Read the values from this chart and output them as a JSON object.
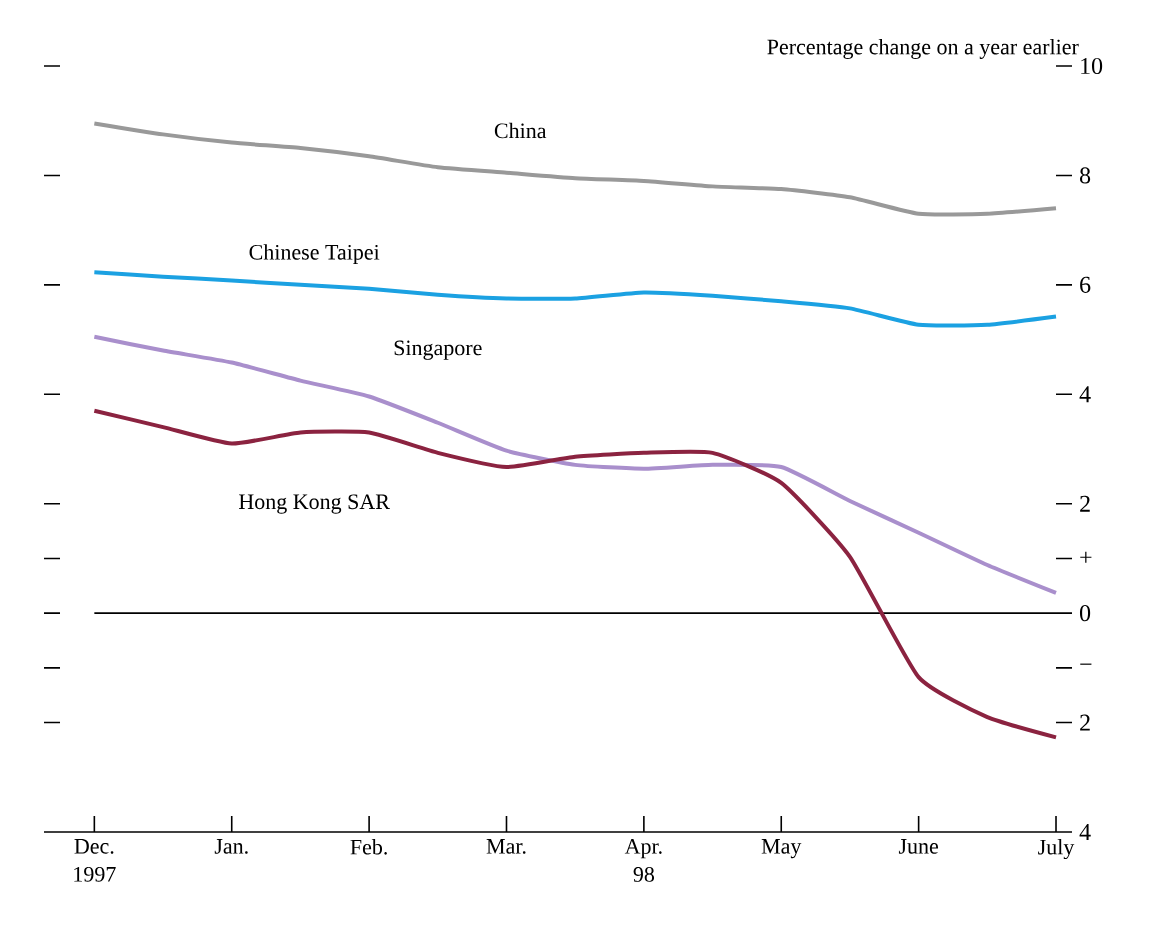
{
  "chart_data": {
    "type": "line",
    "ylabel": "Percentage change on a year earlier",
    "categories": [
      "Dec. 1997",
      null,
      "Jan.",
      null,
      "Feb.",
      null,
      "Mar.",
      null,
      "Apr. 98",
      null,
      "May",
      null,
      "June",
      null,
      "July"
    ],
    "series": [
      {
        "name": "China",
        "color": "#999999",
        "values": [
          8.95,
          8.75,
          8.6,
          8.5,
          8.35,
          8.15,
          8.05,
          7.95,
          7.9,
          7.8,
          7.75,
          7.6,
          7.3,
          7.3,
          7.4
        ]
      },
      {
        "name": "Chinese Taipei",
        "color": "#1ba1e2",
        "values": [
          6.23,
          6.15,
          6.08,
          6.0,
          5.93,
          5.82,
          5.75,
          5.75,
          5.86,
          5.8,
          5.7,
          5.57,
          5.27,
          5.27,
          5.42
        ]
      },
      {
        "name": "Singapore",
        "color": "#a98fcc",
        "values": [
          5.05,
          4.8,
          4.58,
          4.25,
          3.96,
          3.48,
          2.97,
          2.71,
          2.64,
          2.71,
          2.67,
          2.05,
          1.47,
          0.88,
          0.37
        ]
      },
      {
        "name": "Hong Kong SAR",
        "color": "#8b2340",
        "values": [
          3.7,
          3.4,
          3.1,
          3.3,
          3.3,
          2.93,
          2.67,
          2.86,
          2.93,
          2.93,
          2.38,
          1.03,
          -1.17,
          -1.9,
          -2.27
        ]
      }
    ],
    "ylim": [
      -4,
      10
    ],
    "yticks": [
      10,
      8,
      6,
      4,
      2,
      {
        "value": 1,
        "label": "+"
      },
      0,
      {
        "value": -1,
        "label": "−"
      },
      {
        "value": -2,
        "label": "2"
      },
      {
        "value": -4,
        "label": "4"
      }
    ],
    "ref_lines": [
      {
        "axis": "y",
        "value": 0,
        "color": "#000000"
      }
    ],
    "grid": false,
    "marker": "none",
    "line_style": "solid"
  }
}
